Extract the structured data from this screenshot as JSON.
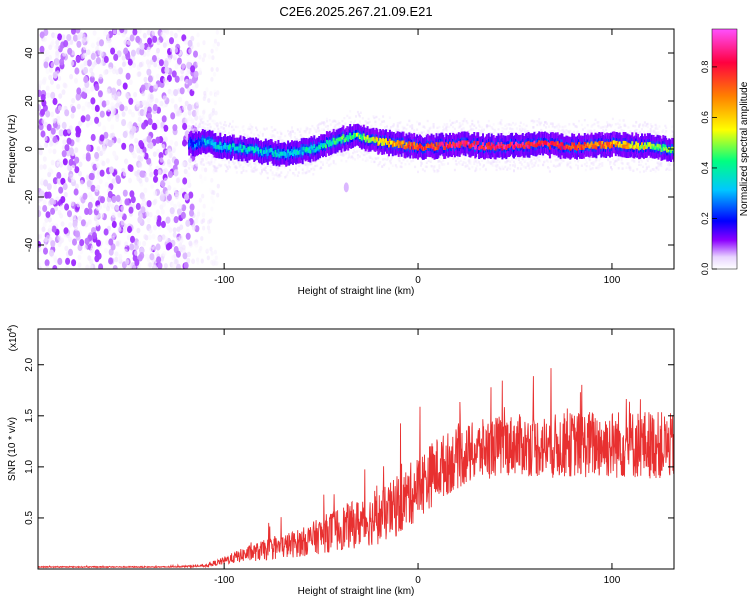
{
  "title": "C2E6.2025.267.21.09.E21",
  "chart_data": [
    {
      "type": "heatmap",
      "name": "spectrogram",
      "xlabel": "Height of straight line (km)",
      "ylabel": "Frequency (Hz)",
      "xlim": [
        -196,
        132
      ],
      "ylim": [
        -50,
        50
      ],
      "xticks": [
        -100,
        0,
        100
      ],
      "yticks": [
        -40,
        -20,
        0,
        20,
        40
      ],
      "colorbar": {
        "label": "Normalized spectral amplitude",
        "range": [
          0,
          0.95
        ],
        "ticks": [
          0.0,
          0.2,
          0.4,
          0.6,
          0.8
        ],
        "colors": [
          "#ffffff",
          "#e8d4ff",
          "#8c00ff",
          "#0000ff",
          "#00c8ff",
          "#00ff80",
          "#ffff00",
          "#ff8000",
          "#ff0040",
          "#ff50ff"
        ]
      },
      "noise_region": {
        "x": [
          -196,
          -114
        ],
        "y": [
          -50,
          50
        ],
        "amplitude": [
          0.02,
          0.2
        ]
      },
      "sparse_region": {
        "x": [
          -114,
          -103
        ],
        "y": [
          -50,
          50
        ],
        "amplitude": [
          0.01,
          0.08
        ]
      },
      "dot_blob": {
        "x": -37,
        "y": -16,
        "amplitude": 0.12
      },
      "ridge": {
        "x": [
          -118,
          -110,
          -100,
          -90,
          -80,
          -70,
          -60,
          -50,
          -40,
          -35,
          -30,
          -20,
          -10,
          0,
          10,
          20,
          40,
          60,
          80,
          100,
          120,
          132
        ],
        "center": [
          2,
          3,
          1,
          0,
          -1,
          -2,
          -1,
          1,
          4,
          5,
          5,
          3,
          2,
          1,
          1,
          2,
          1,
          2,
          1,
          2,
          1,
          0
        ],
        "amplitude": [
          0.35,
          0.4,
          0.45,
          0.45,
          0.42,
          0.45,
          0.45,
          0.48,
          0.52,
          0.55,
          0.58,
          0.65,
          0.72,
          0.78,
          0.82,
          0.85,
          0.86,
          0.85,
          0.8,
          0.72,
          0.6,
          0.55
        ]
      }
    },
    {
      "type": "line",
      "name": "snr",
      "xlabel": "Height of straight line (km)",
      "ylabel": "SNR (10 * v/v)",
      "exponent_label": "(x10",
      "exponent_power": "4",
      "exponent_close": ")",
      "xlim": [
        -196,
        132
      ],
      "ylim": [
        0,
        2.35
      ],
      "xticks": [
        -100,
        0,
        100
      ],
      "yticks": [
        0.5,
        1.0,
        1.5,
        2.0
      ],
      "color": "#e83030",
      "series": [
        {
          "name": "SNR",
          "x": [
            -196,
            -130,
            -110,
            -100,
            -90,
            -80,
            -70,
            -60,
            -50,
            -40,
            -30,
            -20,
            -10,
            0,
            10,
            20,
            30,
            40,
            50,
            60,
            70,
            80,
            90,
            100,
            110,
            120,
            132
          ],
          "values": [
            0.02,
            0.02,
            0.03,
            0.08,
            0.14,
            0.18,
            0.22,
            0.26,
            0.33,
            0.4,
            0.45,
            0.5,
            0.62,
            0.8,
            0.98,
            1.08,
            1.15,
            1.2,
            1.22,
            1.2,
            1.2,
            1.22,
            1.22,
            1.22,
            1.22,
            1.22,
            1.2
          ],
          "noise_amplitude": [
            0.005,
            0.005,
            0.01,
            0.04,
            0.07,
            0.1,
            0.12,
            0.14,
            0.18,
            0.22,
            0.24,
            0.26,
            0.3,
            0.32,
            0.32,
            0.3,
            0.3,
            0.3,
            0.3,
            0.3,
            0.32,
            0.32,
            0.34,
            0.34,
            0.34,
            0.34,
            0.32
          ]
        }
      ]
    }
  ]
}
